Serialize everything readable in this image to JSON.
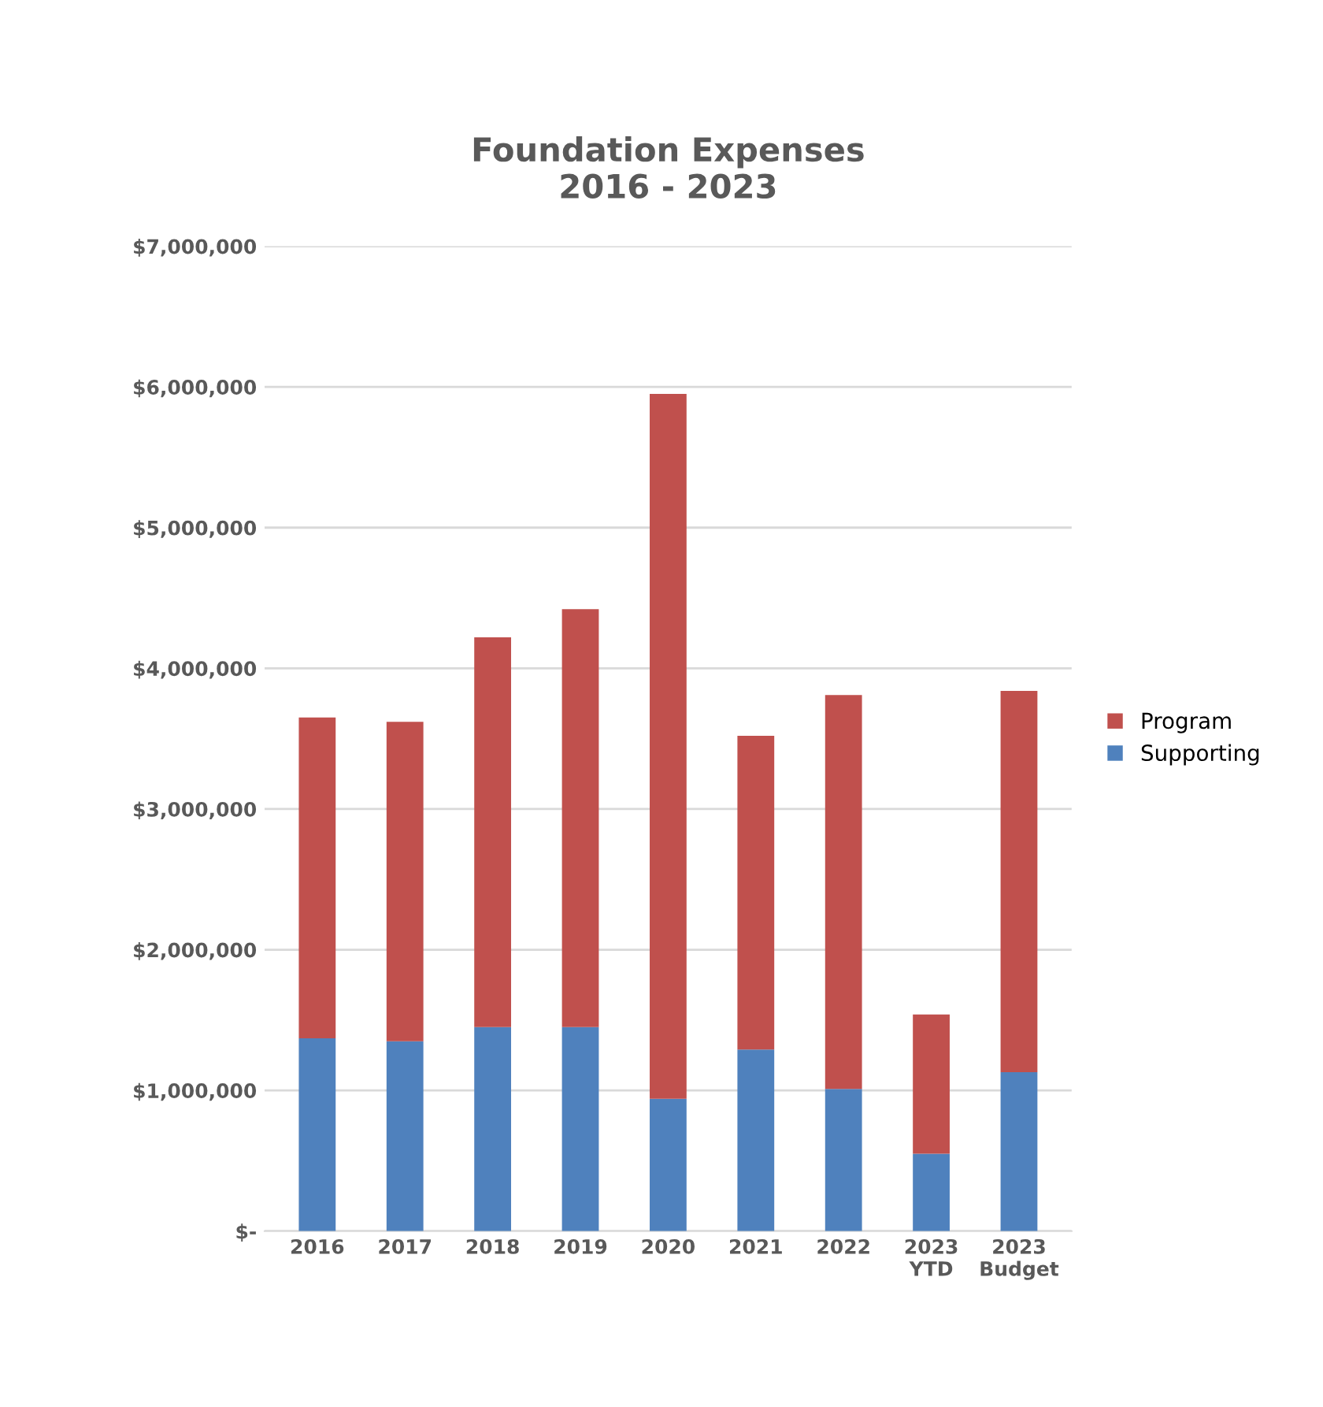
{
  "chart_data": {
    "type": "bar",
    "title": "Foundation Expenses\n2016 - 2023",
    "stacked": true,
    "categories": [
      "2016",
      "2017",
      "2018",
      "2019",
      "2020",
      "2021",
      "2022",
      "2023\nYTD",
      "2023\nBudget"
    ],
    "series": [
      {
        "name": "Supporting",
        "color": "#4f81bd",
        "values": [
          1370000,
          1350000,
          1450000,
          1450000,
          940000,
          1290000,
          1010000,
          550000,
          1130000
        ]
      },
      {
        "name": "Program",
        "color": "#c0504d",
        "values": [
          2280000,
          2270000,
          2770000,
          2970000,
          5010000,
          2230000,
          2800000,
          990000,
          2710000
        ]
      }
    ],
    "ylim": [
      0,
      7000000
    ],
    "yticks": [
      {
        "value": 0,
        "label": "$-"
      },
      {
        "value": 1000000,
        "label": "$1,000,000"
      },
      {
        "value": 2000000,
        "label": "$2,000,000"
      },
      {
        "value": 3000000,
        "label": "$3,000,000"
      },
      {
        "value": 4000000,
        "label": "$4,000,000"
      },
      {
        "value": 5000000,
        "label": "$5,000,000"
      },
      {
        "value": 6000000,
        "label": "$6,000,000"
      },
      {
        "value": 7000000,
        "label": "$7,000,000"
      }
    ],
    "grid": "y",
    "legend": "right"
  }
}
